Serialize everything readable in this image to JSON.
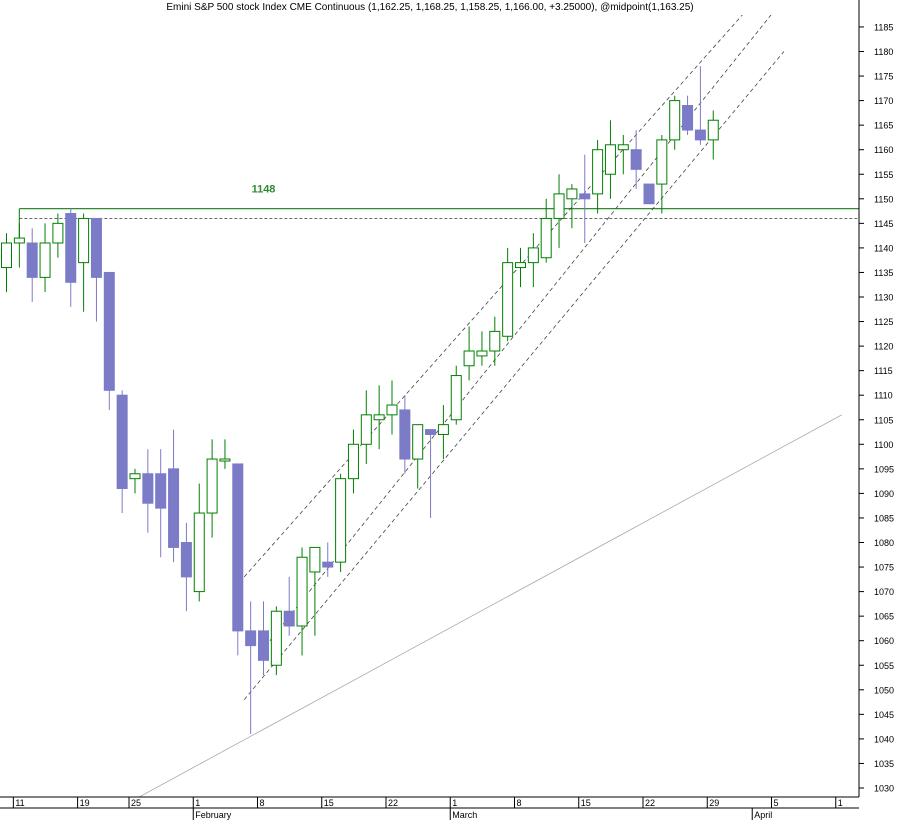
{
  "chart_data": {
    "type": "candlestick",
    "title": "Emini S&P 500 stock Index CME Continuous (1,162.25, 1,168.25, 1,158.25, 1,166.00, +3.25000), @midpoint(1,163.25)",
    "xlabel": "",
    "ylabel": "",
    "ylim": [
      1027,
      1190
    ],
    "y_ticks": [
      1030,
      1035,
      1040,
      1045,
      1050,
      1055,
      1060,
      1065,
      1070,
      1075,
      1080,
      1085,
      1090,
      1095,
      1100,
      1105,
      1110,
      1115,
      1120,
      1125,
      1130,
      1135,
      1140,
      1145,
      1150,
      1155,
      1160,
      1165,
      1170,
      1175,
      1180,
      1185
    ],
    "x_day_ticks": [
      {
        "label": "11",
        "index": 1
      },
      {
        "label": "19",
        "index": 6
      },
      {
        "label": "25",
        "index": 10
      },
      {
        "label": "1",
        "index": 15
      },
      {
        "label": "8",
        "index": 20
      },
      {
        "label": "15",
        "index": 25
      },
      {
        "label": "22",
        "index": 30
      },
      {
        "label": "1",
        "index": 35
      },
      {
        "label": "8",
        "index": 40
      },
      {
        "label": "15",
        "index": 45
      },
      {
        "label": "22",
        "index": 50
      },
      {
        "label": "29",
        "index": 55
      },
      {
        "label": "5",
        "index": 60
      },
      {
        "label": "1",
        "index": 65
      }
    ],
    "x_month_ticks": [
      {
        "label": "February",
        "index": 15
      },
      {
        "label": "March",
        "index": 35
      },
      {
        "label": "April",
        "index": 58.5
      }
    ],
    "annotations": [
      {
        "type": "horizontal_line",
        "value": 1148,
        "label": "1148",
        "label_index": 20,
        "start_index": 1,
        "color": "#2e8b2e",
        "style": "solid"
      },
      {
        "type": "horizontal_line",
        "value": 1146,
        "start_index": 1,
        "color": "#555555",
        "style": "dashed"
      },
      {
        "type": "trendline",
        "points": [
          [
            9.5,
            1027
          ],
          [
            65,
            1106
          ]
        ],
        "color": "#aaaaaa",
        "style": "solid"
      },
      {
        "type": "trendline",
        "points": [
          [
            18.5,
            1073
          ],
          [
            60.5,
            1197
          ]
        ],
        "color": "#444444",
        "style": "dashed"
      },
      {
        "type": "trendline",
        "points": [
          [
            20.5,
            1060
          ],
          [
            61.5,
            1194
          ]
        ],
        "color": "#444444",
        "style": "dashed"
      },
      {
        "type": "trendline",
        "points": [
          [
            18.5,
            1048
          ],
          [
            60.5,
            1180
          ]
        ],
        "color": "#444444",
        "style": "dashed"
      }
    ],
    "up_color": "#008000",
    "down_color": "#7b7bc8",
    "series": [
      {
        "open": 1136,
        "high": 1143,
        "low": 1131,
        "close": 1141
      },
      {
        "open": 1141,
        "high": 1145,
        "low": 1136,
        "close": 1142
      },
      {
        "open": 1141,
        "high": 1144,
        "low": 1129,
        "close": 1134
      },
      {
        "open": 1134,
        "high": 1145,
        "low": 1131,
        "close": 1141
      },
      {
        "open": 1141,
        "high": 1147,
        "low": 1138,
        "close": 1145
      },
      {
        "open": 1147,
        "high": 1148,
        "low": 1128,
        "close": 1133
      },
      {
        "open": 1137,
        "high": 1147,
        "low": 1127,
        "close": 1146
      },
      {
        "open": 1146,
        "high": 1146,
        "low": 1125,
        "close": 1134
      },
      {
        "open": 1135,
        "high": 1135,
        "low": 1107,
        "close": 1111
      },
      {
        "open": 1110,
        "high": 1111,
        "low": 1086,
        "close": 1091
      },
      {
        "open": 1093,
        "high": 1095,
        "low": 1090,
        "close": 1094
      },
      {
        "open": 1094,
        "high": 1099,
        "low": 1082,
        "close": 1088
      },
      {
        "open": 1094,
        "high": 1099,
        "low": 1077,
        "close": 1087
      },
      {
        "open": 1095,
        "high": 1103,
        "low": 1076,
        "close": 1079
      },
      {
        "open": 1080,
        "high": 1084,
        "low": 1066,
        "close": 1073
      },
      {
        "open": 1070,
        "high": 1092,
        "low": 1068,
        "close": 1086
      },
      {
        "open": 1086,
        "high": 1101,
        "low": 1081,
        "close": 1097
      },
      {
        "open": 1097,
        "high": 1101,
        "low": 1095,
        "close": 1097
      },
      {
        "open": 1096,
        "high": 1096,
        "low": 1057,
        "close": 1062
      },
      {
        "open": 1062,
        "high": 1068,
        "low": 1041,
        "close": 1059
      },
      {
        "open": 1062,
        "high": 1068,
        "low": 1053,
        "close": 1056
      },
      {
        "open": 1055,
        "high": 1067,
        "low": 1053,
        "close": 1066
      },
      {
        "open": 1066,
        "high": 1073,
        "low": 1061,
        "close": 1063
      },
      {
        "open": 1063,
        "high": 1079,
        "low": 1057,
        "close": 1077
      },
      {
        "open": 1074,
        "high": 1079,
        "low": 1061,
        "close": 1079
      },
      {
        "open": 1076,
        "high": 1080,
        "low": 1073,
        "close": 1075
      },
      {
        "open": 1076,
        "high": 1094,
        "low": 1074,
        "close": 1093
      },
      {
        "open": 1093,
        "high": 1103,
        "low": 1090,
        "close": 1100
      },
      {
        "open": 1100,
        "high": 1111,
        "low": 1096,
        "close": 1106
      },
      {
        "open": 1105,
        "high": 1112,
        "low": 1099,
        "close": 1106
      },
      {
        "open": 1106,
        "high": 1113,
        "low": 1102,
        "close": 1108
      },
      {
        "open": 1107,
        "high": 1110,
        "low": 1094,
        "close": 1097
      },
      {
        "open": 1097,
        "high": 1104,
        "low": 1091,
        "close": 1104
      },
      {
        "open": 1103,
        "high": 1103,
        "low": 1085,
        "close": 1102
      },
      {
        "open": 1102,
        "high": 1108,
        "low": 1097,
        "close": 1104
      },
      {
        "open": 1105,
        "high": 1116,
        "low": 1104,
        "close": 1114
      },
      {
        "open": 1116,
        "high": 1124,
        "low": 1113,
        "close": 1119
      },
      {
        "open": 1118,
        "high": 1123,
        "low": 1116,
        "close": 1119
      },
      {
        "open": 1119,
        "high": 1126,
        "low": 1116,
        "close": 1123
      },
      {
        "open": 1122,
        "high": 1140,
        "low": 1121,
        "close": 1137
      },
      {
        "open": 1136,
        "high": 1140,
        "low": 1132,
        "close": 1137
      },
      {
        "open": 1137,
        "high": 1143,
        "low": 1132,
        "close": 1140
      },
      {
        "open": 1138,
        "high": 1150,
        "low": 1137,
        "close": 1146
      },
      {
        "open": 1146,
        "high": 1155,
        "low": 1140,
        "close": 1151
      },
      {
        "open": 1150,
        "high": 1153,
        "low": 1144,
        "close": 1152
      },
      {
        "open": 1151,
        "high": 1159,
        "low": 1141,
        "close": 1150
      },
      {
        "open": 1151,
        "high": 1162,
        "low": 1147,
        "close": 1160
      },
      {
        "open": 1155,
        "high": 1166,
        "low": 1150,
        "close": 1161
      },
      {
        "open": 1160,
        "high": 1163,
        "low": 1155,
        "close": 1161
      },
      {
        "open": 1160,
        "high": 1164,
        "low": 1152,
        "close": 1156
      },
      {
        "open": 1153,
        "high": 1153,
        "low": 1149,
        "close": 1149
      },
      {
        "open": 1153,
        "high": 1163,
        "low": 1147,
        "close": 1162
      },
      {
        "open": 1162,
        "high": 1171,
        "low": 1160,
        "close": 1170
      },
      {
        "open": 1169,
        "high": 1171,
        "low": 1163,
        "close": 1164
      },
      {
        "open": 1164,
        "high": 1177,
        "low": 1161,
        "close": 1162
      },
      {
        "open": 1162,
        "high": 1168,
        "low": 1158,
        "close": 1166
      }
    ]
  }
}
